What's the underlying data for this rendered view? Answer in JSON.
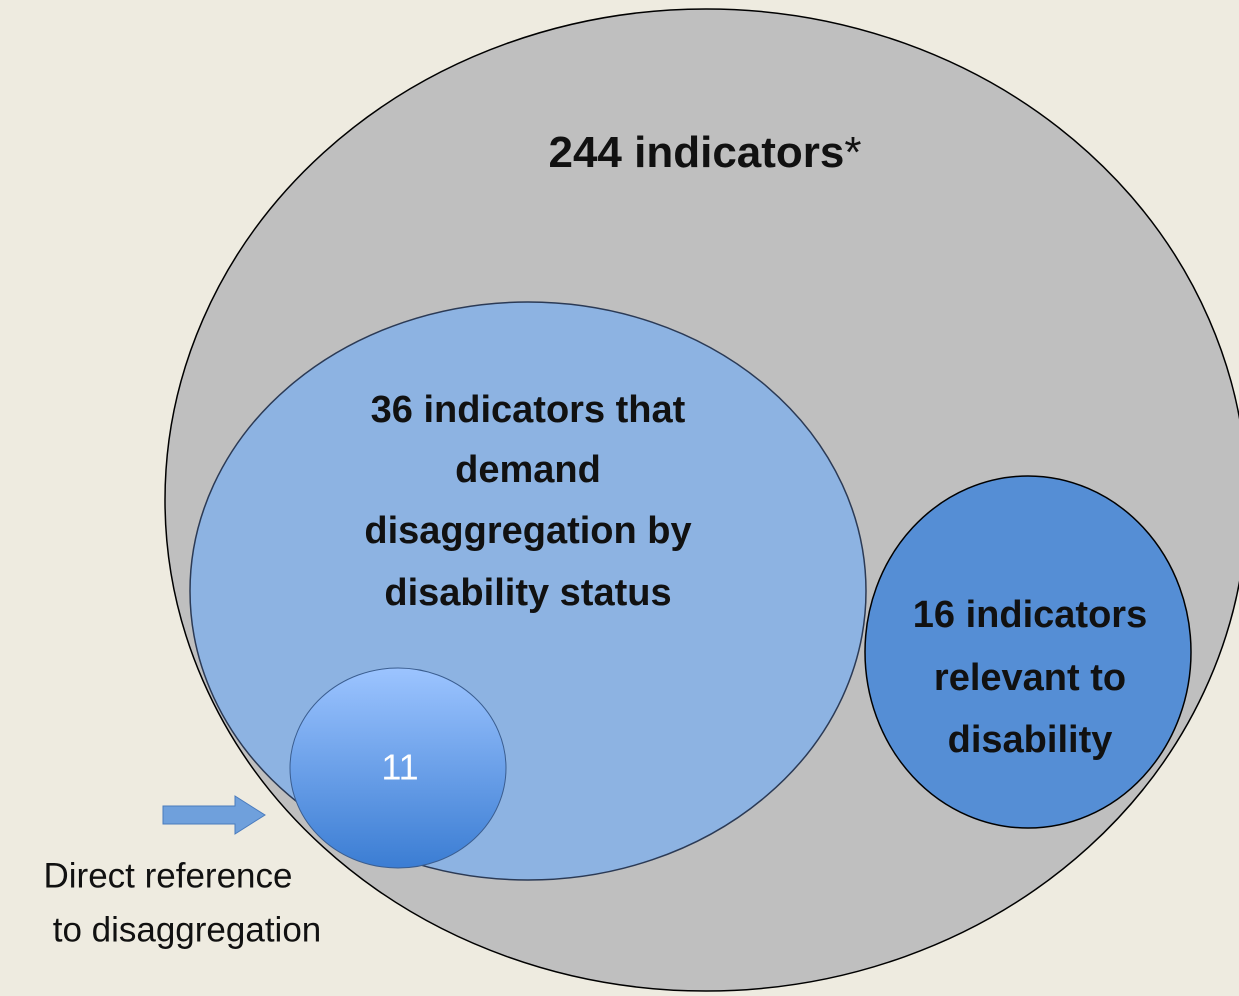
{
  "nodes": [
    {
      "label": "244 indicators",
      "note": "*"
    },
    {
      "label_lines": [
        "36 indicators that",
        "demand",
        "disaggregation by",
        "disability status"
      ]
    },
    {
      "label_lines": [
        "16 indicators",
        "relevant to",
        "disability"
      ]
    },
    {
      "label": "11"
    }
  ],
  "annotation": {
    "label_lines": [
      "Direct reference",
      "to disaggregation"
    ]
  }
}
